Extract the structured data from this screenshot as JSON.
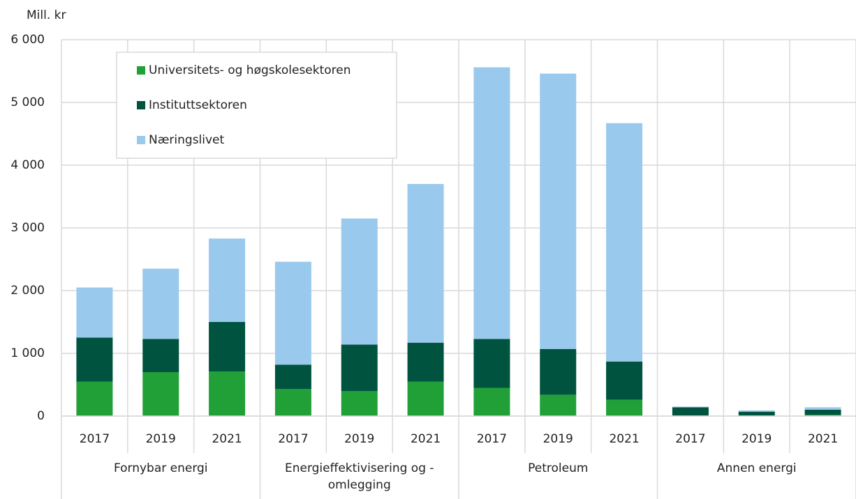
{
  "chart_data": {
    "type": "stacked_bar",
    "y_label": "Mill. kr",
    "groups": [
      {
        "name": "Fornybar energi",
        "size": 3
      },
      {
        "name": "Energieffektivisering og - omlegging",
        "size": 3
      },
      {
        "name": "Petroleum",
        "size": 3
      },
      {
        "name": "Annen energi",
        "size": 3
      }
    ],
    "categories": [
      "2017",
      "2019",
      "2021",
      "2017",
      "2019",
      "2021",
      "2017",
      "2019",
      "2021",
      "2017",
      "2019",
      "2021"
    ],
    "series": [
      {
        "name": "Universitets- og høgskolesektoren",
        "color": "#21a038",
        "values": [
          550,
          700,
          710,
          430,
          400,
          550,
          450,
          340,
          260,
          10,
          10,
          20
        ]
      },
      {
        "name": "Instituttsektoren",
        "color": "#00543f",
        "values": [
          700,
          530,
          790,
          390,
          740,
          620,
          780,
          730,
          610,
          130,
          60,
          80
        ]
      },
      {
        "name": "Næringslivet",
        "color": "#99c9ec",
        "values": [
          800,
          1120,
          1330,
          1640,
          2010,
          2530,
          4330,
          4390,
          3800,
          10,
          20,
          40
        ]
      }
    ],
    "ylim": [
      0,
      6000
    ],
    "yticks": [
      0,
      {
        "value": 1000,
        "label": "1 000"
      },
      {
        "value": 2000,
        "label": "2 000"
      },
      {
        "value": 3000,
        "label": "3 000"
      },
      {
        "value": 4000,
        "label": "4 000"
      },
      {
        "value": 5000,
        "label": "5 000"
      },
      {
        "value": 6000,
        "label": "6 000"
      }
    ],
    "grid": true,
    "legend": "upper left"
  }
}
